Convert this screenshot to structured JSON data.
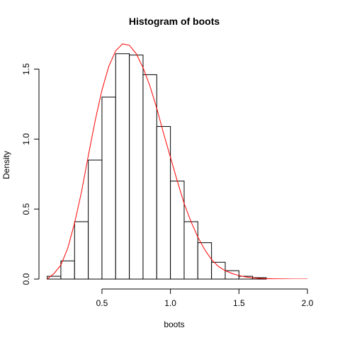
{
  "chart_data": {
    "type": "bar",
    "title": "Histogram of boots",
    "xlabel": "boots",
    "ylabel": "Density",
    "xlim": [
      0.04,
      2.0
    ],
    "ylim": [
      0,
      1.7
    ],
    "x_ticks": [
      0.5,
      1.0,
      1.5,
      2.0
    ],
    "x_tick_labels": [
      "0.5",
      "1.0",
      "1.5",
      "2.0"
    ],
    "y_ticks": [
      0.0,
      0.5,
      1.0,
      1.5
    ],
    "y_tick_labels": [
      "0.0",
      "0.5",
      "1.0",
      "1.5"
    ],
    "grid": false,
    "bin_width": 0.1,
    "bins": [
      {
        "start": 0.1,
        "end": 0.2,
        "density": 0.02
      },
      {
        "start": 0.2,
        "end": 0.3,
        "density": 0.13
      },
      {
        "start": 0.3,
        "end": 0.4,
        "density": 0.41
      },
      {
        "start": 0.4,
        "end": 0.5,
        "density": 0.85
      },
      {
        "start": 0.5,
        "end": 0.6,
        "density": 1.3
      },
      {
        "start": 0.6,
        "end": 0.7,
        "density": 1.61
      },
      {
        "start": 0.7,
        "end": 0.8,
        "density": 1.6
      },
      {
        "start": 0.8,
        "end": 0.9,
        "density": 1.46
      },
      {
        "start": 0.9,
        "end": 1.0,
        "density": 1.09
      },
      {
        "start": 1.0,
        "end": 1.1,
        "density": 0.7
      },
      {
        "start": 1.1,
        "end": 1.2,
        "density": 0.41
      },
      {
        "start": 1.2,
        "end": 1.3,
        "density": 0.26
      },
      {
        "start": 1.3,
        "end": 1.4,
        "density": 0.12
      },
      {
        "start": 1.4,
        "end": 1.5,
        "density": 0.06
      },
      {
        "start": 1.5,
        "end": 1.6,
        "density": 0.02
      },
      {
        "start": 1.6,
        "end": 1.7,
        "density": 0.01
      }
    ],
    "curve": {
      "color": "#ff0000",
      "x": [
        0.1,
        0.15,
        0.2,
        0.25,
        0.3,
        0.35,
        0.4,
        0.45,
        0.5,
        0.55,
        0.6,
        0.65,
        0.7,
        0.75,
        0.8,
        0.85,
        0.9,
        0.95,
        1.0,
        1.05,
        1.1,
        1.15,
        1.2,
        1.25,
        1.3,
        1.35,
        1.4,
        1.45,
        1.5,
        1.55,
        1.6,
        1.65,
        1.7,
        1.75,
        1.8,
        1.85,
        1.9,
        1.95,
        2.0
      ],
      "y": [
        0.0,
        0.04,
        0.1,
        0.22,
        0.4,
        0.62,
        0.88,
        1.13,
        1.35,
        1.52,
        1.63,
        1.68,
        1.67,
        1.61,
        1.51,
        1.38,
        1.22,
        1.04,
        0.87,
        0.7,
        0.54,
        0.41,
        0.3,
        0.21,
        0.14,
        0.09,
        0.06,
        0.04,
        0.025,
        0.015,
        0.009,
        0.005,
        0.003,
        0.002,
        0.001,
        0.0005,
        0.0003,
        0.0002,
        0.0001
      ]
    },
    "bar_fill": "#ffffff",
    "bar_stroke": "#000000"
  }
}
